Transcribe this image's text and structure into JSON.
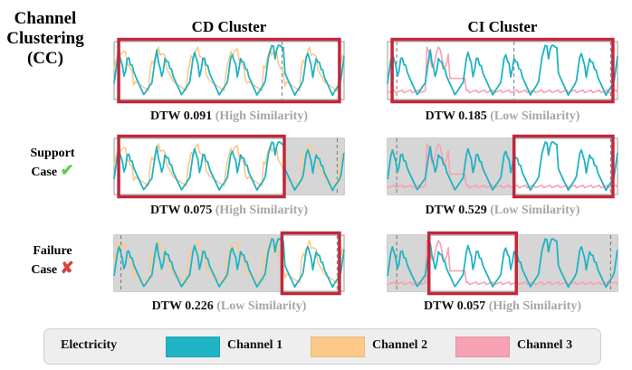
{
  "title_lines": [
    "Channel",
    "Clustering",
    "(CC)"
  ],
  "columns": {
    "cd": "CD Cluster",
    "ci": "CI Cluster"
  },
  "rows": {
    "support": {
      "line1": "Support",
      "line2": "Case"
    },
    "failure": {
      "line1": "Failure",
      "line2": "Case"
    }
  },
  "icons": {
    "support": "check-icon",
    "failure": "cross-icon"
  },
  "captions": [
    {
      "dtw": "DTW 0.091",
      "sim": "(High Similarity)"
    },
    {
      "dtw": "DTW 0.185",
      "sim": "(Low Similarity)"
    },
    {
      "dtw": "DTW 0.075",
      "sim": "(High Similarity)"
    },
    {
      "dtw": "DTW 0.529",
      "sim": "(Low Similarity)"
    },
    {
      "dtw": "DTW 0.226",
      "sim": "(Low Similarity)"
    },
    {
      "dtw": "DTW 0.057",
      "sim": "(High Similarity)"
    }
  ],
  "legend": {
    "dataset": "Electricity",
    "items": [
      {
        "label": "Channel 1",
        "color": "#1fb3c3"
      },
      {
        "label": "Channel 2",
        "color": "#fcc98a"
      },
      {
        "label": "Channel 3",
        "color": "#f7a1b5"
      }
    ]
  },
  "colors": {
    "highlight": "#c0283b",
    "shade": "#d6d6d6",
    "check": "#5fd04a",
    "cross": "#d9403b"
  }
}
